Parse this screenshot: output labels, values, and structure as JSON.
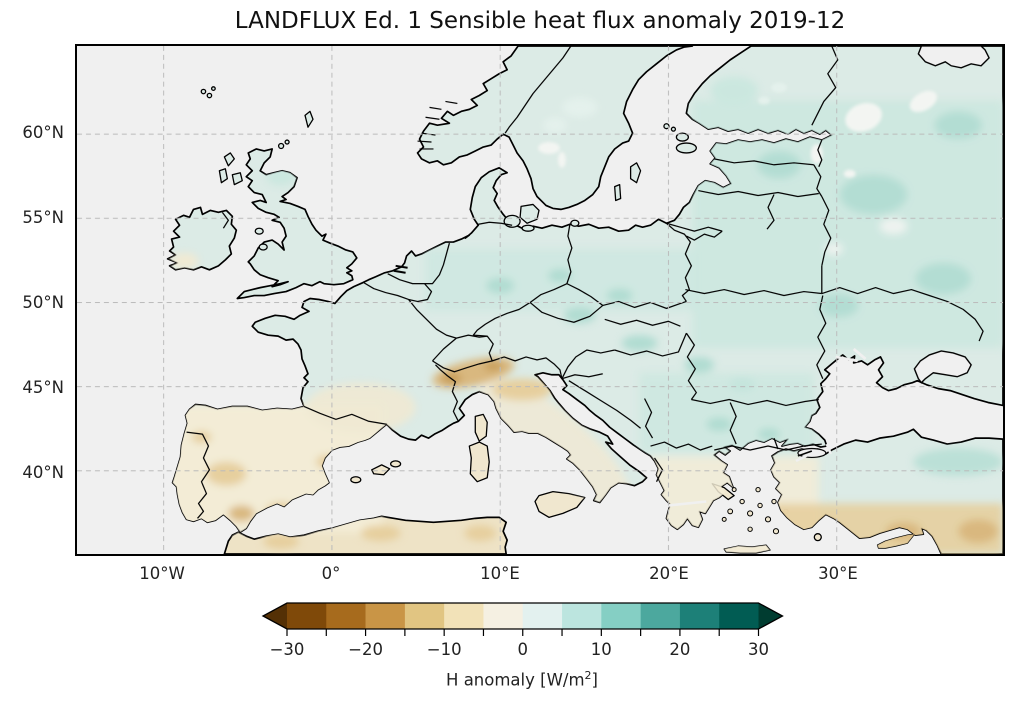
{
  "figure": {
    "title": "LANDFLUX Ed. 1 Sensible heat flux anomaly 2019-12"
  },
  "axes": {
    "y_ticks": [
      "60°N",
      "55°N",
      "50°N",
      "45°N",
      "40°N"
    ],
    "x_ticks": [
      "10°W",
      "0°",
      "10°E",
      "20°E",
      "30°E"
    ]
  },
  "chart_data": {
    "type": "heatmap",
    "subtype": "geographic map (PlateCarree lat/lon, Europe)",
    "title": "LANDFLUX Ed. 1 Sensible heat flux anomaly 2019-12",
    "x_tick_labels": [
      "10°W",
      "0°",
      "10°E",
      "20°E",
      "30°E"
    ],
    "y_tick_labels": [
      "60°N",
      "55°N",
      "50°N",
      "45°N",
      "40°N"
    ],
    "lon_range": [
      -15.5,
      40.5
    ],
    "lat_range": [
      35.0,
      65.3
    ],
    "grid": "dashed gray graticule every 5 degrees",
    "colorbar": {
      "label": "H anomaly [W/m²]",
      "label_pre": "H anomaly [W/m",
      "label_sup": "2",
      "label_post": "]",
      "units": "W/m²",
      "range": [
        -30,
        30
      ],
      "segment_step": 5,
      "extend": "both",
      "colormap": "BrBG (brown-white-teal), 12 discrete bins plus extend arrows",
      "tick_values": [
        -30,
        -20,
        -10,
        0,
        10,
        20,
        30
      ],
      "tick_labels": [
        "−30",
        "−20",
        "−10",
        "0",
        "10",
        "20",
        "30"
      ],
      "colors": [
        "#543005",
        "#7f4909",
        "#a76b1d",
        "#c99546",
        "#e1c582",
        "#f2e2b8",
        "#f5f0e2",
        "#e3f1ef",
        "#bce5df",
        "#85cfc4",
        "#4ca89e",
        "#1d8078",
        "#015c53",
        "#003c30"
      ]
    },
    "regions_read_from_map": [
      {
        "region": "British Isles",
        "anomaly_wm2": "+1 to +4"
      },
      {
        "region": "Northern France / Low Countries",
        "anomaly_wm2": "+1 to +4"
      },
      {
        "region": "Iberian Peninsula",
        "anomaly_wm2": "-1 to -6"
      },
      {
        "region": "Alps and northern Italy",
        "anomaly_wm2": "-5 to -15"
      },
      {
        "region": "Central Europe (Germany-Poland)",
        "anomaly_wm2": "+2 to +6"
      },
      {
        "region": "Scandinavia",
        "anomaly_wm2": "+2 to +5"
      },
      {
        "region": "Baltics / north-west Russia / Ukraine",
        "anomaly_wm2": "+4 to +10"
      },
      {
        "region": "Balkans / Carpathians",
        "anomaly_wm2": "+3 to +8"
      },
      {
        "region": "Mediterranean (Italy, Greece, islands)",
        "anomaly_wm2": "-2 to -8"
      },
      {
        "region": "Southern Turkey / Levant / North Africa",
        "anomaly_wm2": "-3 to -10"
      },
      {
        "region": "Anatolia interior",
        "anomaly_wm2": "+1 to +4"
      }
    ]
  },
  "colors": {
    "sea": "#f0f0f0",
    "land": "#dcebe6",
    "africa": "#eee3c6",
    "island_cream": "#f0e7cf",
    "cyprus": "#e9d6ab",
    "lake": "#f3f5f2",
    "grid": "#bbbbbb",
    "coast": "#000000",
    "patch": {
      "cream": "#f3ecd6",
      "cream_soft": "#f0e9d3",
      "tan": "#e6cf9e",
      "tan_deep": "#d9b87f",
      "brown": "#c79d58",
      "teal_wash": "#cbe7df",
      "teal_mid": "#b0dcd1",
      "teal_deep": "#b3ddd3",
      "pale": "#e4f1ec",
      "white_patch": "#eef3f0"
    }
  }
}
